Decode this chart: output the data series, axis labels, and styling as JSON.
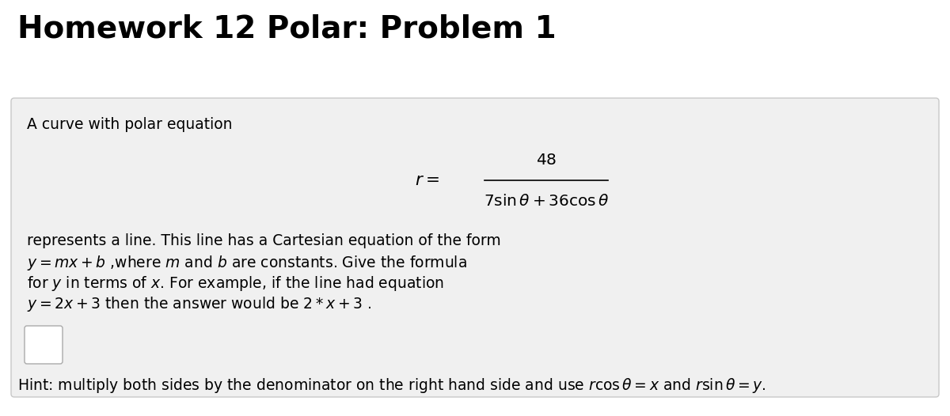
{
  "title": "Homework 12 Polar: Problem 1",
  "title_fontsize": 28,
  "title_fontweight": "bold",
  "bg_color": "#ffffff",
  "box_color": "#f0f0f0",
  "box_edge_color": "#c8c8c8",
  "text_color": "#000000",
  "line1": "A curve with polar equation",
  "body_line1": "represents a line. This line has a Cartesian equation of the form",
  "body_line2": "$y = mx + b$ ,where $m$ and $b$ are constants. Give the formula",
  "body_line3": "for $y$ in terms of $x$. For example, if the line had equation",
  "body_line4": "$y = 2x + 3$ then the answer would be $2 * x + 3$ .",
  "hint_text": "Hint: multiply both sides by the denominator on the right hand side and use $r\\cos\\theta = x$ and $r\\sin\\theta = y$.",
  "font_size_body": 13.5,
  "font_size_hint": 13.5,
  "eq_r_label": "$r = $",
  "eq_numerator": "$48$",
  "eq_denominator": "$7\\sin\\theta + 36\\cos\\theta$"
}
